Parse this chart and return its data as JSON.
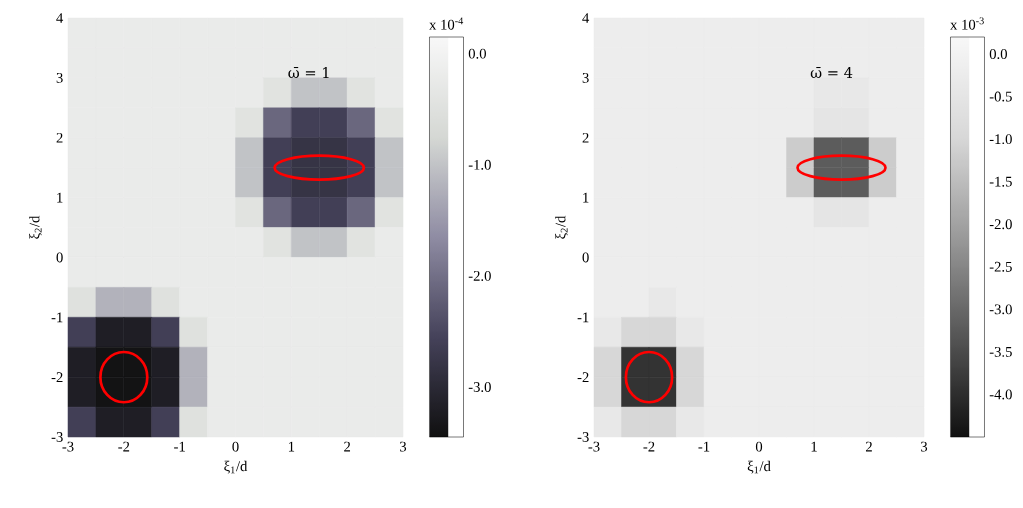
{
  "chart_data": [
    {
      "type": "heatmap",
      "xlabel": "ξ$_{1}$/d",
      "ylabel": "ξ$_{2}$/d",
      "clabel": "x 10$^{-4}$",
      "annotations": [
        "ω̄ = 1"
      ],
      "x": [
        -2.75,
        -2.25,
        -1.75,
        -1.25,
        -0.75,
        -0.25,
        0.25,
        0.75,
        1.25,
        1.75,
        2.25,
        2.75
      ],
      "y": [
        3.75,
        3.25,
        2.75,
        2.25,
        1.75,
        1.25,
        0.75,
        0.25,
        -0.25,
        -0.75,
        -1.25,
        -1.75,
        -2.25,
        -2.75
      ],
      "cells": [
        [
          -0.2,
          -0.2,
          -0.2,
          -0.2,
          -0.2,
          -0.2,
          -0.2,
          -0.2,
          -0.2,
          -0.2,
          -0.2,
          -0.2
        ],
        [
          -0.2,
          -0.2,
          -0.2,
          -0.2,
          -0.2,
          -0.2,
          -0.2,
          -0.2,
          -0.2,
          -0.2,
          -0.2,
          -0.2
        ],
        [
          -0.2,
          -0.2,
          -0.2,
          -0.2,
          -0.2,
          -0.2,
          -0.2,
          -0.45,
          -1.0,
          -1.0,
          -0.45,
          -0.2
        ],
        [
          -0.2,
          -0.2,
          -0.2,
          -0.2,
          -0.2,
          -0.2,
          -0.45,
          -2.1,
          -2.6,
          -2.6,
          -2.1,
          -0.45
        ],
        [
          -0.2,
          -0.2,
          -0.2,
          -0.2,
          -0.2,
          -0.2,
          -1.0,
          -2.6,
          -2.8,
          -2.8,
          -2.6,
          -1.0
        ],
        [
          -0.2,
          -0.2,
          -0.2,
          -0.2,
          -0.2,
          -0.2,
          -1.0,
          -2.6,
          -2.8,
          -2.8,
          -2.6,
          -1.0
        ],
        [
          -0.2,
          -0.2,
          -0.2,
          -0.2,
          -0.2,
          -0.2,
          -0.45,
          -2.1,
          -2.6,
          -2.6,
          -2.1,
          -0.45
        ],
        [
          -0.2,
          -0.2,
          -0.2,
          -0.2,
          -0.2,
          -0.2,
          -0.2,
          -0.45,
          -1.0,
          -1.0,
          -0.45,
          -0.2
        ],
        [
          -0.2,
          -0.2,
          -0.2,
          -0.2,
          -0.2,
          -0.2,
          -0.2,
          -0.2,
          -0.2,
          -0.2,
          -0.2,
          -0.2
        ],
        [
          -0.5,
          -1.2,
          -1.2,
          -0.5,
          -0.2,
          -0.2,
          -0.2,
          -0.2,
          -0.2,
          -0.2,
          -0.2,
          -0.2
        ],
        [
          -2.6,
          -3.2,
          -3.2,
          -2.6,
          -0.5,
          -0.2,
          -0.2,
          -0.2,
          -0.2,
          -0.2,
          -0.2,
          -0.2
        ],
        [
          -3.2,
          -3.4,
          -3.4,
          -3.2,
          -1.2,
          -0.2,
          -0.2,
          -0.2,
          -0.2,
          -0.2,
          -0.2,
          -0.2
        ],
        [
          -3.2,
          -3.4,
          -3.4,
          -3.2,
          -1.2,
          -0.2,
          -0.2,
          -0.2,
          -0.2,
          -0.2,
          -0.2,
          -0.2
        ],
        [
          -2.6,
          -3.2,
          -3.2,
          -2.6,
          -0.5,
          -0.2,
          -0.2,
          -0.2,
          -0.2,
          -0.2,
          -0.2,
          -0.2
        ]
      ],
      "colors": [
        "#101010",
        "#45425a",
        "#8f8ca3",
        "#d5d8d4",
        "#f8f8f8"
      ],
      "clim": [
        -3.45,
        0.15
      ],
      "cticks": [
        {
          "value": 0,
          "label": "0.0"
        },
        {
          "value": -1,
          "label": "-1.0"
        },
        {
          "value": -2,
          "label": "-2.0"
        },
        {
          "value": -3,
          "label": "-3.0"
        }
      ],
      "xlim": [
        -3,
        3
      ],
      "ylim": [
        -3,
        4
      ],
      "xticks": [
        -3,
        -2,
        -1,
        0,
        1,
        2,
        3
      ],
      "yticks": [
        -3,
        -2,
        -1,
        0,
        1,
        2,
        3,
        4
      ]
    },
    {
      "type": "heatmap",
      "xlabel": "ξ$_{1}$/d",
      "ylabel": "ξ$_{2}$/d",
      "clabel": "x 10$^{-3}$",
      "annotations": [
        "ω̄ = 4"
      ],
      "x": [
        -2.75,
        -2.25,
        -1.75,
        -1.25,
        -0.75,
        -0.25,
        0.25,
        0.75,
        1.25,
        1.75,
        2.25,
        2.75
      ],
      "y": [
        3.75,
        3.25,
        2.75,
        2.25,
        1.75,
        1.25,
        0.75,
        0.25,
        -0.25,
        -0.75,
        -1.25,
        -1.75,
        -2.25,
        -2.75
      ],
      "cells": [
        [
          -0.2,
          -0.2,
          -0.2,
          -0.2,
          -0.2,
          -0.2,
          -0.2,
          -0.2,
          -0.2,
          -0.2,
          -0.2,
          -0.2
        ],
        [
          -0.2,
          -0.2,
          -0.2,
          -0.2,
          -0.2,
          -0.2,
          -0.2,
          -0.2,
          -0.2,
          -0.2,
          -0.2,
          -0.2
        ],
        [
          -0.2,
          -0.2,
          -0.2,
          -0.2,
          -0.2,
          -0.2,
          -0.2,
          -0.2,
          -0.4,
          -0.4,
          -0.2,
          -0.2
        ],
        [
          -0.2,
          -0.2,
          -0.2,
          -0.2,
          -0.2,
          -0.2,
          -0.2,
          -0.2,
          -0.5,
          -0.5,
          -0.2,
          -0.2
        ],
        [
          -0.2,
          -0.2,
          -0.2,
          -0.2,
          -0.2,
          -0.2,
          -0.2,
          -1.2,
          -3.2,
          -3.2,
          -1.2,
          -0.2
        ],
        [
          -0.2,
          -0.2,
          -0.2,
          -0.2,
          -0.2,
          -0.2,
          -0.2,
          -1.2,
          -3.2,
          -3.2,
          -1.2,
          -0.2
        ],
        [
          -0.2,
          -0.2,
          -0.2,
          -0.2,
          -0.2,
          -0.2,
          -0.2,
          -0.2,
          -0.5,
          -0.5,
          -0.2,
          -0.2
        ],
        [
          -0.2,
          -0.2,
          -0.2,
          -0.2,
          -0.2,
          -0.2,
          -0.2,
          -0.2,
          -0.2,
          -0.2,
          -0.2,
          -0.2
        ],
        [
          -0.2,
          -0.2,
          -0.2,
          -0.2,
          -0.2,
          -0.2,
          -0.2,
          -0.2,
          -0.2,
          -0.2,
          -0.2,
          -0.2
        ],
        [
          -0.2,
          -0.2,
          -0.4,
          -0.2,
          -0.2,
          -0.2,
          -0.2,
          -0.2,
          -0.2,
          -0.2,
          -0.2,
          -0.2
        ],
        [
          -0.4,
          -1.0,
          -1.0,
          -0.4,
          -0.2,
          -0.2,
          -0.2,
          -0.2,
          -0.2,
          -0.2,
          -0.2,
          -0.2
        ],
        [
          -1.0,
          -3.9,
          -3.9,
          -1.0,
          -0.2,
          -0.2,
          -0.2,
          -0.2,
          -0.2,
          -0.2,
          -0.2,
          -0.2
        ],
        [
          -1.0,
          -3.9,
          -3.9,
          -1.0,
          -0.2,
          -0.2,
          -0.2,
          -0.2,
          -0.2,
          -0.2,
          -0.2,
          -0.2
        ],
        [
          -0.4,
          -1.0,
          -1.0,
          -0.4,
          -0.2,
          -0.2,
          -0.2,
          -0.2,
          -0.2,
          -0.2,
          -0.2,
          -0.2
        ]
      ],
      "colors": [
        "#101010",
        "#555555",
        "#9a9a9a",
        "#d8d8d8",
        "#f8f8f8"
      ],
      "clim": [
        -4.5,
        0.2
      ],
      "cticks": [
        {
          "value": 0,
          "label": "0.0"
        },
        -0.5,
        {
          "value": -1,
          "label": "-1.0"
        },
        -1.5,
        {
          "value": -2,
          "label": "-2.0"
        },
        -2.5,
        {
          "value": -3,
          "label": "-3.0"
        },
        -3.5,
        {
          "value": -4,
          "label": "-4.0"
        }
      ],
      "xlim": [
        -3,
        3
      ],
      "ylim": [
        -3,
        4
      ],
      "xticks": [
        -3,
        -2,
        -1,
        0,
        1,
        2,
        3
      ],
      "yticks": [
        -3,
        -2,
        -1,
        0,
        1,
        2,
        3,
        4
      ]
    }
  ]
}
